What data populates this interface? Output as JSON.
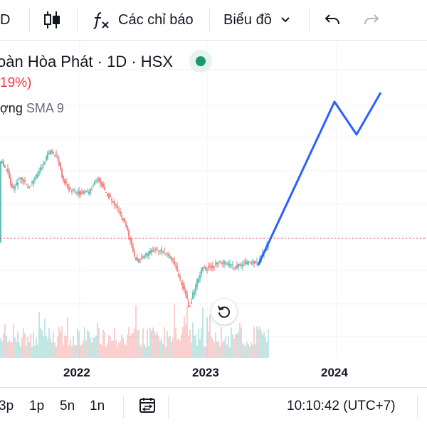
{
  "toolbar": {
    "interval_label": "D",
    "indicators_label": "Các chỉ báo",
    "chart_type_label": "Biểu đồ"
  },
  "legend": {
    "title": "oàn Hòa Phát · 1D · HSX",
    "change": "19%)",
    "volume_label": "ợng",
    "sma_label": "SMA 9"
  },
  "x_axis": {
    "ticks": [
      "2022",
      "2023",
      "2024"
    ]
  },
  "bottom_bar": {
    "ranges": [
      "3p",
      "1p",
      "5n",
      "1n"
    ],
    "time": "10:10:42 (UTC+7)"
  },
  "colors": {
    "up": "#26a69a",
    "down": "#ef5350",
    "drawing": "#2962ff",
    "price_line": "#f23645",
    "status": "#1a9a6c"
  }
}
